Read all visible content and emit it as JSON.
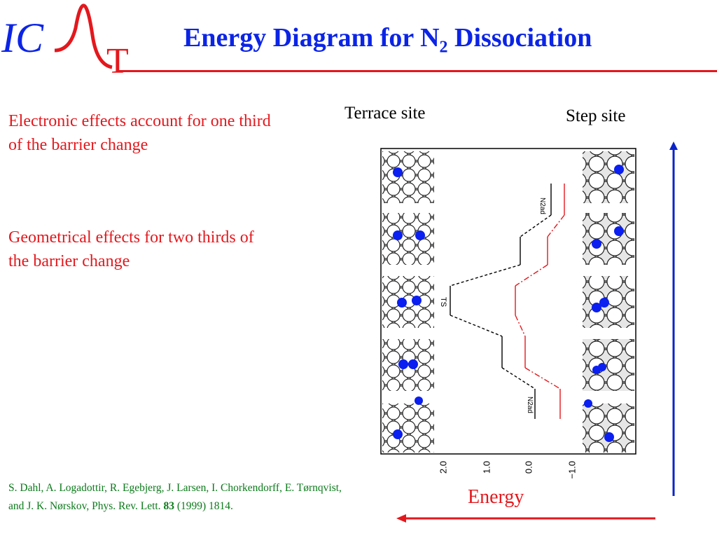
{
  "logo": {
    "text_ic": "IC",
    "text_t": "T"
  },
  "title": {
    "main": "Energy Diagram for N",
    "sub": "2",
    "tail": " Dissociation"
  },
  "bullets": [
    "Electronic effects account for one third of the barrier change",
    "Geometrical effects for two thirds of the barrier change"
  ],
  "sites": {
    "terrace": "Terrace site",
    "step": "Step site"
  },
  "diagram": {
    "curve_labels": {
      "top": "N2ad",
      "middle": "TS",
      "bottom": "N2ad"
    },
    "energy_ticks": [
      "2.0",
      "1.0",
      "0.0",
      "−1.0"
    ],
    "colors": {
      "terrace_curve": "#000000",
      "step_curve": "#e3181d",
      "atoms": "#0a1ff0"
    }
  },
  "axis": {
    "label": "Energy",
    "color_vertical": "#0b24c8",
    "color_horizontal": "#e3181d"
  },
  "reference": {
    "authors": "S. Dahl, A. Logadottir, R. Egebjerg, J. Larsen, I. Chorkendorff, E. Tørnqvist, and J. K. Nørskov, Phys. Rev. Lett. ",
    "volume": "83",
    "year_pages": " (1999) 1814."
  }
}
